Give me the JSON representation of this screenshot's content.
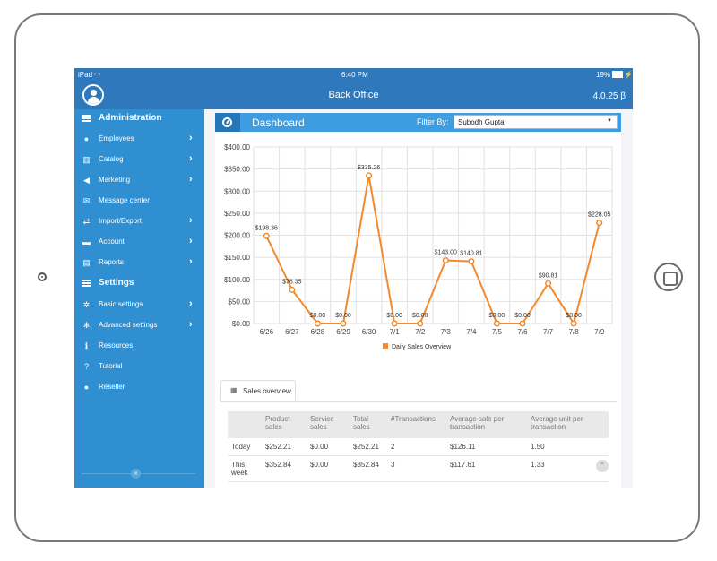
{
  "status": {
    "carrier": "iPad",
    "time": "6:40 PM",
    "battery": "19%"
  },
  "app": {
    "title": "Back Office",
    "version": "4.0.25 β"
  },
  "sidebar": {
    "admin_title": "Administration",
    "admin_items": [
      {
        "label": "Employees",
        "icon": "user-icon",
        "chev": "›"
      },
      {
        "label": "Catalog",
        "icon": "barcode-icon",
        "chev": "›"
      },
      {
        "label": "Marketing",
        "icon": "megaphone-icon",
        "chev": "›"
      },
      {
        "label": "Message center",
        "icon": "envelope-icon",
        "chev": ""
      },
      {
        "label": "Import/Export",
        "icon": "exchange-icon",
        "chev": "›"
      },
      {
        "label": "Account",
        "icon": "briefcase-icon",
        "chev": "›"
      },
      {
        "label": "Reports",
        "icon": "bar-chart-icon",
        "chev": "›"
      }
    ],
    "settings_title": "Settings",
    "settings_items": [
      {
        "label": "Basic settings",
        "icon": "gear-icon",
        "chev": "›"
      },
      {
        "label": "Advanced settings",
        "icon": "gears-icon",
        "chev": "›"
      },
      {
        "label": "Resources",
        "icon": "info-icon",
        "chev": ""
      },
      {
        "label": "Tutorial",
        "icon": "question-icon",
        "chev": ""
      },
      {
        "label": "Reseller",
        "icon": "user-icon",
        "chev": ""
      }
    ]
  },
  "dashboard": {
    "title": "Dashboard",
    "filter_label": "Filter By:",
    "filter_value": "Subodh Gupta"
  },
  "chart_data": {
    "type": "line",
    "categories": [
      "6/26",
      "6/27",
      "6/28",
      "6/29",
      "6/30",
      "7/1",
      "7/2",
      "7/3",
      "7/4",
      "7/5",
      "7/6",
      "7/7",
      "7/8",
      "7/9"
    ],
    "series": [
      {
        "name": "Daily Sales Overview",
        "values": [
          198.36,
          76.35,
          0,
          0,
          335.26,
          0,
          0,
          143.0,
          140.81,
          0,
          0,
          90.81,
          0,
          228.05
        ],
        "labels": [
          "$198.36",
          "$76.35",
          "$0.00",
          "$0.00",
          "$335.26",
          "$0.00",
          "$0.00",
          "$143.00",
          "$140.81",
          "$0.00",
          "$0.00",
          "$90.81",
          "$0.00",
          "$228.05"
        ],
        "color": "#f28a2e"
      }
    ],
    "ylim": [
      0,
      400
    ],
    "yticks": [
      "$0.00",
      "$50.00",
      "$100.00",
      "$150.00",
      "$200.00",
      "$250.00",
      "$300.00",
      "$350.00",
      "$400.00"
    ],
    "grid": true,
    "legend": "bottom"
  },
  "sales": {
    "tab_label": "Sales overview",
    "headers": [
      "",
      "Product sales",
      "Service sales",
      "Total sales",
      "#Transactions",
      "Average sale per transaction",
      "Average unit per transaction"
    ],
    "rows": [
      [
        "Today",
        "$252.21",
        "$0.00",
        "$252.21",
        "2",
        "$126.11",
        "1.50"
      ],
      [
        "This week",
        "$352.84",
        "$0.00",
        "$352.84",
        "3",
        "$117.61",
        "1.33"
      ]
    ]
  }
}
